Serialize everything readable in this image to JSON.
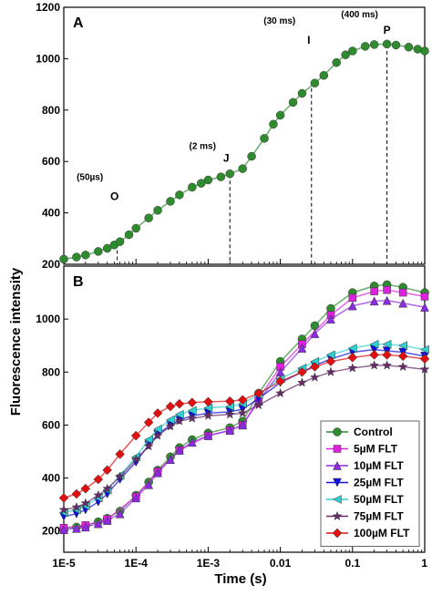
{
  "chart_data": [
    {
      "panel": "A",
      "type": "scatter",
      "x_scale": "log",
      "xlim": [
        1e-05,
        1
      ],
      "ylim": [
        200,
        1200
      ],
      "yticks": [
        200,
        400,
        600,
        800,
        1000,
        1200
      ],
      "markers": [
        {
          "label": "O",
          "time_label": "(50µs)",
          "x": 5.5e-05,
          "y": 280
        },
        {
          "label": "J",
          "time_label": "(2 ms)",
          "x": 0.002,
          "y": 550
        },
        {
          "label": "I",
          "time_label": "(30 ms)",
          "x": 0.027,
          "y": 910
        },
        {
          "label": "P",
          "time_label": "(400 ms)",
          "x": 0.3,
          "y": 1055
        }
      ],
      "series": [
        {
          "name": "Control",
          "color": "#2e8b2e",
          "x": [
            1e-05,
            1.5e-05,
            2e-05,
            3e-05,
            4e-05,
            5e-05,
            6e-05,
            8e-05,
            0.0001,
            0.00015,
            0.0002,
            0.0003,
            0.0004,
            0.0006,
            0.0008,
            0.001,
            0.0015,
            0.002,
            0.003,
            0.004,
            0.006,
            0.008,
            0.01,
            0.015,
            0.02,
            0.03,
            0.04,
            0.06,
            0.08,
            0.1,
            0.15,
            0.2,
            0.3,
            0.4,
            0.6,
            0.8,
            1
          ],
          "y": [
            220,
            228,
            236,
            250,
            262,
            275,
            288,
            315,
            340,
            380,
            410,
            445,
            470,
            500,
            515,
            528,
            540,
            552,
            572,
            620,
            690,
            745,
            780,
            830,
            865,
            905,
            935,
            985,
            1015,
            1030,
            1048,
            1055,
            1057,
            1053,
            1045,
            1037,
            1030
          ]
        }
      ]
    },
    {
      "panel": "B",
      "type": "scatter",
      "x_scale": "log",
      "xlim": [
        1e-05,
        1
      ],
      "ylim": [
        120,
        1200
      ],
      "yticks": [
        200,
        400,
        600,
        800,
        1000
      ],
      "xticks": [
        "1E-5",
        "1E-4",
        "1E-3",
        "0.01",
        "0.1",
        "1"
      ],
      "xlabel": "Time (s)",
      "legend": "bottom-right",
      "series": [
        {
          "name": "Control",
          "marker": "circle",
          "color": "#2e8b2e",
          "x": [
            1e-05,
            1.5e-05,
            2e-05,
            3e-05,
            4e-05,
            6e-05,
            0.0001,
            0.00015,
            0.0002,
            0.0003,
            0.0004,
            0.0006,
            0.001,
            0.002,
            0.003,
            0.005,
            0.01,
            0.02,
            0.03,
            0.05,
            0.1,
            0.2,
            0.3,
            0.5,
            1
          ],
          "y": [
            210,
            215,
            220,
            235,
            248,
            275,
            335,
            385,
            430,
            480,
            515,
            545,
            570,
            590,
            615,
            720,
            840,
            925,
            975,
            1040,
            1100,
            1125,
            1130,
            1120,
            1100
          ]
        },
        {
          "name": "5µM FLT",
          "marker": "square",
          "color": "#e020e0",
          "x": [
            1e-05,
            2e-05,
            4e-05,
            0.0001,
            0.0002,
            0.0004,
            0.001,
            0.002,
            0.003,
            0.005,
            0.01,
            0.02,
            0.05,
            0.1,
            0.2,
            0.3,
            0.5,
            1
          ],
          "y": [
            212,
            222,
            245,
            330,
            425,
            505,
            560,
            580,
            600,
            700,
            820,
            905,
            1015,
            1080,
            1105,
            1110,
            1100,
            1085
          ]
        },
        {
          "name": "10µM FLT",
          "marker": "triangle-up",
          "color": "#8a2be2",
          "x": [
            1e-05,
            1.5e-05,
            2e-05,
            3e-05,
            4e-05,
            6e-05,
            0.0001,
            0.00015,
            0.0002,
            0.0003,
            0.0004,
            0.0006,
            0.001,
            0.002,
            0.003,
            0.005,
            0.01,
            0.02,
            0.03,
            0.05,
            0.1,
            0.2,
            0.3,
            0.5,
            1
          ],
          "y": [
            205,
            210,
            215,
            228,
            240,
            265,
            325,
            375,
            420,
            470,
            505,
            535,
            560,
            580,
            600,
            690,
            800,
            890,
            945,
            1000,
            1050,
            1068,
            1070,
            1060,
            1045
          ]
        },
        {
          "name": "25µM FLT",
          "marker": "triangle-down",
          "color": "#1010e0",
          "x": [
            1e-05,
            1.5e-05,
            2e-05,
            3e-05,
            4e-05,
            6e-05,
            0.0001,
            0.00015,
            0.0002,
            0.0003,
            0.0004,
            0.0006,
            0.001,
            0.002,
            0.003,
            0.005,
            0.01,
            0.02,
            0.03,
            0.05,
            0.1,
            0.2,
            0.3,
            0.5,
            1
          ],
          "y": [
            255,
            265,
            280,
            310,
            340,
            395,
            460,
            525,
            565,
            600,
            620,
            635,
            645,
            650,
            660,
            700,
            760,
            800,
            825,
            850,
            875,
            885,
            880,
            875,
            860
          ]
        },
        {
          "name": "50µM FLT",
          "marker": "triangle-left",
          "color": "#30d0d0",
          "x": [
            1e-05,
            1.5e-05,
            2e-05,
            3e-05,
            4e-05,
            6e-05,
            0.0001,
            0.00015,
            0.0002,
            0.0003,
            0.0004,
            0.0006,
            0.001,
            0.002,
            0.003,
            0.005,
            0.01,
            0.02,
            0.03,
            0.05,
            0.1,
            0.2,
            0.3,
            0.5,
            1
          ],
          "y": [
            270,
            280,
            295,
            325,
            355,
            410,
            480,
            545,
            585,
            620,
            640,
            655,
            665,
            670,
            680,
            715,
            775,
            815,
            840,
            865,
            890,
            905,
            905,
            900,
            885
          ]
        },
        {
          "name": "75µM FLT",
          "marker": "star",
          "color": "#6a2a6a",
          "x": [
            1e-05,
            1.5e-05,
            2e-05,
            3e-05,
            4e-05,
            6e-05,
            0.0001,
            0.00015,
            0.0002,
            0.0003,
            0.0004,
            0.0006,
            0.001,
            0.002,
            0.003,
            0.005,
            0.01,
            0.02,
            0.03,
            0.05,
            0.1,
            0.2,
            0.3,
            0.5,
            1
          ],
          "y": [
            280,
            290,
            305,
            335,
            360,
            405,
            470,
            520,
            560,
            595,
            615,
            625,
            635,
            640,
            645,
            675,
            720,
            760,
            780,
            800,
            815,
            825,
            825,
            820,
            810
          ]
        },
        {
          "name": "100µM FLT",
          "marker": "diamond",
          "color": "#e01010",
          "x": [
            1e-05,
            1.5e-05,
            2e-05,
            3e-05,
            4e-05,
            6e-05,
            0.0001,
            0.00015,
            0.0002,
            0.0003,
            0.0004,
            0.0006,
            0.001,
            0.002,
            0.003,
            0.005,
            0.01,
            0.02,
            0.03,
            0.05,
            0.1,
            0.2,
            0.3,
            0.5,
            1
          ],
          "y": [
            325,
            340,
            360,
            395,
            430,
            490,
            560,
            610,
            645,
            670,
            680,
            685,
            688,
            690,
            695,
            720,
            765,
            800,
            820,
            840,
            855,
            865,
            865,
            860,
            850
          ]
        }
      ]
    }
  ],
  "y_axis_label": "Fluorescence intensity"
}
